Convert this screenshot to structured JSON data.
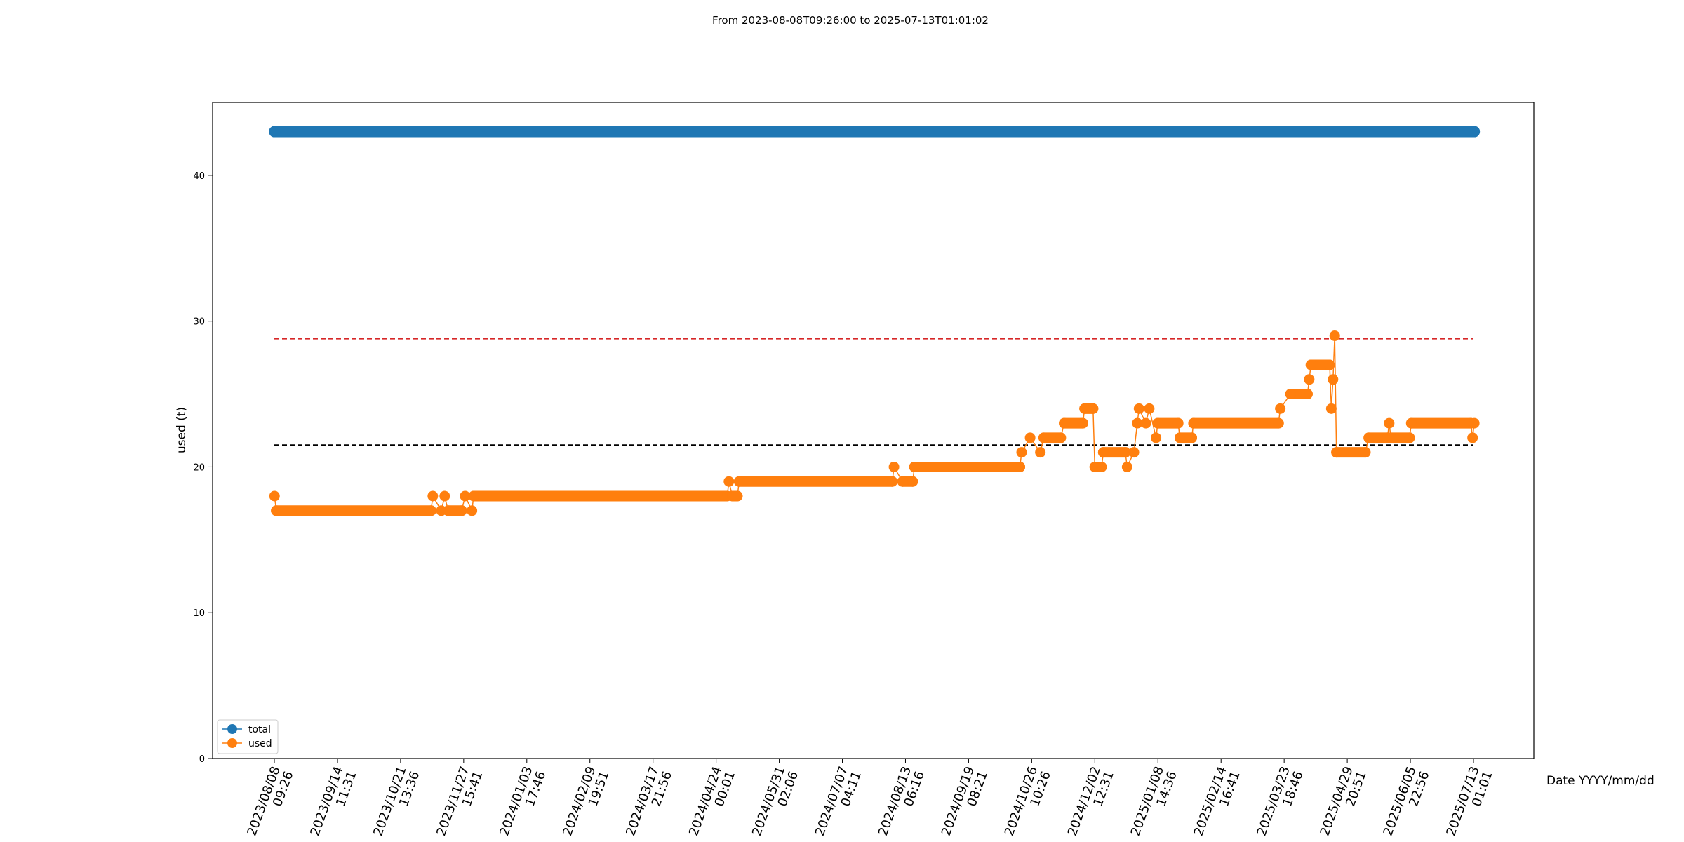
{
  "chart_data": {
    "type": "line",
    "title": "From 2023-08-08T09:26:00 to 2025-07-13T01:01:02",
    "xlabel": "Date YYYY/mm/dd",
    "ylabel": "used (t)",
    "x_range": [
      "2023-08-08 09:26",
      "2025-07-13 01:01"
    ],
    "ylim": [
      0,
      45
    ],
    "y_ticks": [
      0,
      10,
      20,
      30,
      40
    ],
    "x_ticks": [
      {
        "date": "2023/08/08",
        "time": "09:26"
      },
      {
        "date": "2023/09/14",
        "time": "11:31"
      },
      {
        "date": "2023/10/21",
        "time": "13:36"
      },
      {
        "date": "2023/11/27",
        "time": "15:41"
      },
      {
        "date": "2024/01/03",
        "time": "17:46"
      },
      {
        "date": "2024/02/09",
        "time": "19:51"
      },
      {
        "date": "2024/03/17",
        "time": "21:56"
      },
      {
        "date": "2024/04/24",
        "time": "00:01"
      },
      {
        "date": "2024/05/31",
        "time": "02:06"
      },
      {
        "date": "2024/07/07",
        "time": "04:11"
      },
      {
        "date": "2024/08/13",
        "time": "06:16"
      },
      {
        "date": "2024/09/19",
        "time": "08:21"
      },
      {
        "date": "2024/10/26",
        "time": "10:26"
      },
      {
        "date": "2024/12/02",
        "time": "12:31"
      },
      {
        "date": "2025/01/08",
        "time": "14:36"
      },
      {
        "date": "2025/02/14",
        "time": "16:41"
      },
      {
        "date": "2025/03/23",
        "time": "18:46"
      },
      {
        "date": "2025/04/29",
        "time": "20:51"
      },
      {
        "date": "2025/06/05",
        "time": "22:56"
      },
      {
        "date": "2025/07/13",
        "time": "01:01"
      }
    ],
    "grid": false,
    "legend_position": "lower-left",
    "series": [
      {
        "name": "total",
        "color": "#1f77b4",
        "points": [
          [
            "2023-08-08",
            43
          ],
          [
            "2025-07-13",
            43
          ]
        ]
      },
      {
        "name": "used",
        "color": "#ff7f0e",
        "points": [
          [
            "2023-08-08",
            18
          ],
          [
            "2023-08-09",
            17
          ],
          [
            "2023-11-08",
            17
          ],
          [
            "2023-11-09",
            18
          ],
          [
            "2023-11-14",
            17
          ],
          [
            "2023-11-16",
            18
          ],
          [
            "2023-11-18",
            17
          ],
          [
            "2023-11-26",
            17
          ],
          [
            "2023-11-28",
            18
          ],
          [
            "2023-12-02",
            17
          ],
          [
            "2023-12-03",
            18
          ],
          [
            "2024-04-30",
            18
          ],
          [
            "2024-05-01",
            19
          ],
          [
            "2024-05-03",
            18
          ],
          [
            "2024-05-06",
            18
          ],
          [
            "2024-05-07",
            19
          ],
          [
            "2024-08-05",
            19
          ],
          [
            "2024-08-06",
            20
          ],
          [
            "2024-08-11",
            19
          ],
          [
            "2024-08-17",
            19
          ],
          [
            "2024-08-18",
            20
          ],
          [
            "2024-10-19",
            20
          ],
          [
            "2024-10-20",
            21
          ],
          [
            "2024-10-25",
            22
          ],
          [
            "2024-10-31",
            21
          ],
          [
            "2024-11-02",
            22
          ],
          [
            "2024-11-12",
            22
          ],
          [
            "2024-11-14",
            23
          ],
          [
            "2024-11-25",
            23
          ],
          [
            "2024-11-26",
            24
          ],
          [
            "2024-12-01",
            24
          ],
          [
            "2024-12-02",
            20
          ],
          [
            "2024-12-06",
            20
          ],
          [
            "2024-12-07",
            21
          ],
          [
            "2024-12-20",
            21
          ],
          [
            "2024-12-21",
            20
          ],
          [
            "2024-12-25",
            21
          ],
          [
            "2024-12-27",
            23
          ],
          [
            "2024-12-28",
            24
          ],
          [
            "2025-01-01",
            23
          ],
          [
            "2025-01-03",
            24
          ],
          [
            "2025-01-07",
            22
          ],
          [
            "2025-01-08",
            23
          ],
          [
            "2025-01-20",
            23
          ],
          [
            "2025-01-21",
            22
          ],
          [
            "2025-01-28",
            22
          ],
          [
            "2025-01-29",
            23
          ],
          [
            "2025-03-20",
            23
          ],
          [
            "2025-03-21",
            24
          ],
          [
            "2025-03-27",
            25
          ],
          [
            "2025-04-06",
            25
          ],
          [
            "2025-04-07",
            26
          ],
          [
            "2025-04-08",
            27
          ],
          [
            "2025-04-19",
            27
          ],
          [
            "2025-04-20",
            24
          ],
          [
            "2025-04-21",
            26
          ],
          [
            "2025-04-22",
            29
          ],
          [
            "2025-04-23",
            21
          ],
          [
            "2025-05-10",
            21
          ],
          [
            "2025-05-12",
            22
          ],
          [
            "2025-05-23",
            22
          ],
          [
            "2025-05-24",
            23
          ],
          [
            "2025-05-25",
            22
          ],
          [
            "2025-06-05",
            22
          ],
          [
            "2025-06-06",
            23
          ],
          [
            "2025-07-11",
            23
          ],
          [
            "2025-07-12",
            22
          ],
          [
            "2025-07-13",
            23
          ]
        ]
      }
    ],
    "reference_lines": [
      {
        "value": 28.8,
        "color": "#d62728",
        "style": "dashed"
      },
      {
        "value": 21.5,
        "color": "#000000",
        "style": "dashed"
      }
    ]
  }
}
